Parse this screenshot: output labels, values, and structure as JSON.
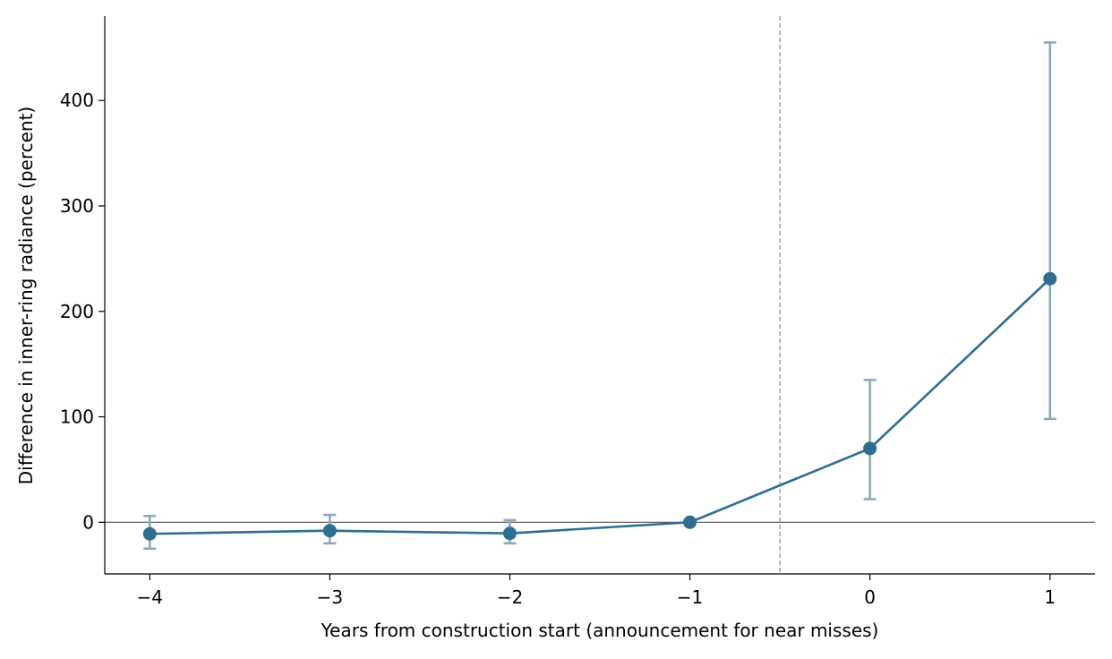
{
  "chart_data": {
    "type": "line",
    "title": "",
    "xlabel": "Years from construction start (announcement for near misses)",
    "ylabel": "Difference in inner-ring radiance (percent)",
    "xlim": [
      -4.25,
      1.25
    ],
    "ylim": [
      -49,
      480
    ],
    "x_ticks": [
      -4,
      -3,
      -2,
      -1,
      0,
      1
    ],
    "x_tick_labels": [
      "−4",
      "−3",
      "−2",
      "−1",
      "0",
      "1"
    ],
    "y_ticks": [
      0,
      100,
      200,
      300,
      400
    ],
    "y_tick_labels": [
      "0",
      "100",
      "200",
      "300",
      "400"
    ],
    "grid": false,
    "reference_lines": {
      "horizontal_y": 0,
      "vertical_dashed_x": -0.5
    },
    "series": [
      {
        "x": [
          -4,
          -3,
          -2,
          -1,
          0,
          1
        ],
        "y": [
          -11,
          -8,
          -10.5,
          0,
          70,
          231
        ],
        "error_low": [
          -25,
          -20,
          -20,
          0,
          22,
          98
        ],
        "error_high": [
          6,
          7,
          2,
          0,
          135,
          455
        ]
      }
    ],
    "colors": {
      "line": "#2e6e8e",
      "marker": "#2e6e8e",
      "errorbar": "#87a8b8",
      "zero_line": "#555555",
      "dashed_line": "#888888",
      "axis": "#000000"
    }
  }
}
